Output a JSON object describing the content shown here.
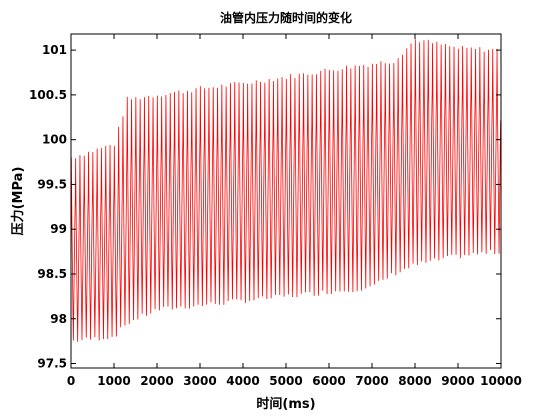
{
  "chart_data": {
    "type": "line",
    "title": "油管内压力随时间的变化",
    "xlabel": "时间(ms)",
    "ylabel": "压力(MPa)",
    "xlim": [
      0,
      10000
    ],
    "ylim": [
      97.45,
      101.18
    ],
    "x_ticks": [
      0,
      1000,
      2000,
      3000,
      4000,
      5000,
      6000,
      7000,
      8000,
      9000,
      10000
    ],
    "y_ticks": [
      97.5,
      98,
      98.5,
      99,
      99.5,
      100,
      100.5,
      101
    ],
    "x_tick_labels": [
      "0",
      "1000",
      "2000",
      "3000",
      "4000",
      "5000",
      "6000",
      "7000",
      "8000",
      "9000",
      "10000"
    ],
    "y_tick_labels": [
      "97.5",
      "98",
      "98.5",
      "99",
      "99.5",
      "100",
      "100.5",
      "101"
    ],
    "grid": false,
    "series": [
      {
        "color": "#ff0000",
        "period_ms": 100,
        "x": [
          0,
          1000,
          1300,
          2000,
          3000,
          4000,
          5000,
          6000,
          7000,
          7500,
          8000,
          9000,
          10000
        ],
        "peak": [
          99.8,
          99.95,
          100.45,
          100.5,
          100.57,
          100.63,
          100.7,
          100.78,
          100.85,
          100.88,
          101.12,
          101.02,
          101.0
        ],
        "trough": [
          97.75,
          97.8,
          97.95,
          98.1,
          98.15,
          98.2,
          98.25,
          98.3,
          98.35,
          98.5,
          98.6,
          98.7,
          98.75
        ]
      }
    ]
  }
}
